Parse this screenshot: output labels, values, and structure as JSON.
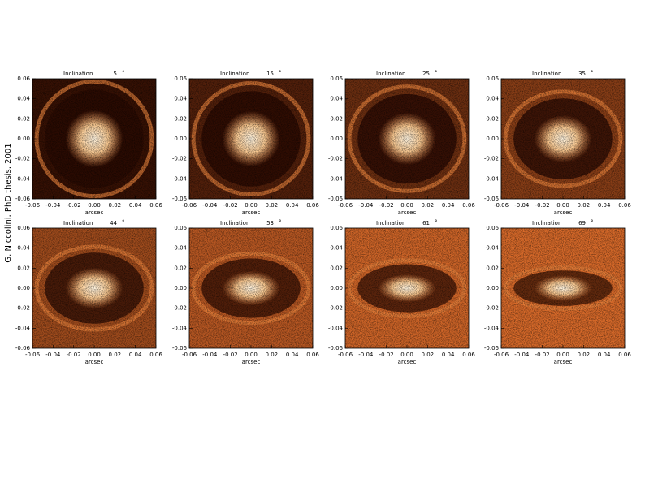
{
  "side_note": "G. Niccolini, PhD thesis, 2001",
  "chart_data": [
    {
      "type": "image",
      "title": "Inclination",
      "inclination": 5,
      "unit": "°",
      "xlabel": "arcsec",
      "xlim": [
        -0.06,
        0.06
      ],
      "ylim": [
        -0.06,
        0.06
      ],
      "xticks": [
        -0.06,
        -0.04,
        -0.02,
        {
          "value": 0,
          "label": "0.00"
        },
        0.02,
        0.04,
        0.06
      ],
      "yticks": [
        -0.06,
        -0.04,
        -0.02,
        {
          "value": 0,
          "label": "0.00"
        },
        0.02,
        0.04,
        0.06
      ]
    },
    {
      "type": "image",
      "title": "Inclination",
      "inclination": 15,
      "unit": "°",
      "xlabel": "arcsec",
      "xlim": [
        -0.06,
        0.06
      ],
      "ylim": [
        -0.06,
        0.06
      ],
      "xticks": [
        -0.06,
        -0.04,
        -0.02,
        {
          "value": 0,
          "label": "0.00"
        },
        0.02,
        0.04,
        0.06
      ],
      "yticks": [
        -0.06,
        -0.04,
        -0.02,
        {
          "value": 0,
          "label": "0.00"
        },
        0.02,
        0.04,
        0.06
      ]
    },
    {
      "type": "image",
      "title": "Inclination",
      "inclination": 25,
      "unit": "°",
      "xlabel": "arcsec",
      "xlim": [
        -0.06,
        0.06
      ],
      "ylim": [
        -0.06,
        0.06
      ],
      "xticks": [
        -0.06,
        -0.04,
        -0.02,
        {
          "value": 0,
          "label": "0.00"
        },
        0.02,
        0.04,
        0.06
      ],
      "yticks": [
        -0.06,
        -0.04,
        -0.02,
        {
          "value": 0,
          "label": "0.00"
        },
        0.02,
        0.04,
        0.06
      ]
    },
    {
      "type": "image",
      "title": "Inclination",
      "inclination": 35,
      "unit": "°",
      "xlabel": "arcsec",
      "xlim": [
        -0.06,
        0.06
      ],
      "ylim": [
        -0.06,
        0.06
      ],
      "xticks": [
        -0.06,
        -0.04,
        -0.02,
        {
          "value": 0,
          "label": "0.00"
        },
        0.02,
        0.04,
        0.06
      ],
      "yticks": [
        -0.06,
        -0.04,
        -0.02,
        {
          "value": 0,
          "label": "0.00"
        },
        0.02,
        0.04,
        0.06
      ]
    },
    {
      "type": "image",
      "title": "Inclination",
      "inclination": 44,
      "unit": "°",
      "xlabel": "arcsec",
      "xlim": [
        -0.06,
        0.06
      ],
      "ylim": [
        -0.06,
        0.06
      ],
      "xticks": [
        -0.06,
        -0.04,
        -0.02,
        {
          "value": 0,
          "label": "0.00"
        },
        0.02,
        0.04,
        0.06
      ],
      "yticks": [
        -0.06,
        -0.04,
        -0.02,
        {
          "value": 0,
          "label": "0.00"
        },
        0.02,
        0.04,
        0.06
      ]
    },
    {
      "type": "image",
      "title": "Inclination",
      "inclination": 53,
      "unit": "°",
      "xlabel": "arcsec",
      "xlim": [
        -0.06,
        0.06
      ],
      "ylim": [
        -0.06,
        0.06
      ],
      "xticks": [
        -0.06,
        -0.04,
        -0.02,
        {
          "value": 0,
          "label": "0.00"
        },
        0.02,
        0.04,
        0.06
      ],
      "yticks": [
        -0.06,
        -0.04,
        -0.02,
        {
          "value": 0,
          "label": "0.00"
        },
        0.02,
        0.04,
        0.06
      ]
    },
    {
      "type": "image",
      "title": "Inclination",
      "inclination": 61,
      "unit": "°",
      "xlabel": "arcsec",
      "xlim": [
        -0.06,
        0.06
      ],
      "ylim": [
        -0.06,
        0.06
      ],
      "xticks": [
        -0.06,
        -0.04,
        -0.02,
        {
          "value": 0,
          "label": "0.00"
        },
        0.02,
        0.04,
        0.06
      ],
      "yticks": [
        -0.06,
        -0.04,
        -0.02,
        {
          "value": 0,
          "label": "0.00"
        },
        0.02,
        0.04,
        0.06
      ]
    },
    {
      "type": "image",
      "title": "Inclination",
      "inclination": 69,
      "unit": "°",
      "xlabel": "arcsec",
      "xlim": [
        -0.06,
        0.06
      ],
      "ylim": [
        -0.06,
        0.06
      ],
      "xticks": [
        -0.06,
        -0.04,
        -0.02,
        {
          "value": 0,
          "label": "0.00"
        },
        0.02,
        0.04,
        0.06
      ],
      "yticks": [
        -0.06,
        -0.04,
        -0.02,
        {
          "value": 0,
          "label": "0.00"
        },
        0.02,
        0.04,
        0.06
      ]
    }
  ]
}
